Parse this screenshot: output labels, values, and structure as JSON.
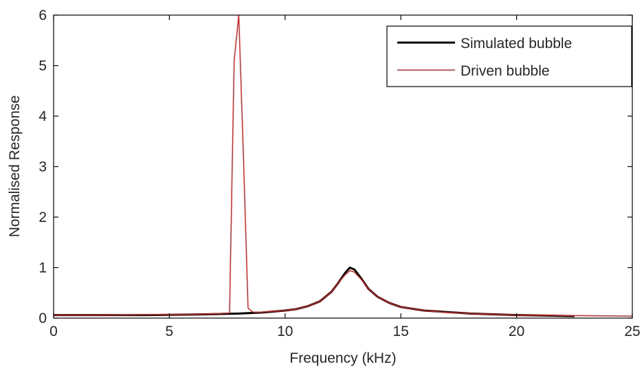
{
  "chart_data": {
    "type": "line",
    "xlabel": "Frequency (kHz)",
    "ylabel": "Normalised Response",
    "xlim": [
      0,
      25
    ],
    "ylim": [
      0,
      6
    ],
    "xticks": [
      0,
      5,
      10,
      15,
      20,
      25
    ],
    "yticks": [
      0,
      1,
      2,
      3,
      4,
      5,
      6
    ],
    "grid": false,
    "legend_position": "top-right",
    "series": [
      {
        "name": "Simulated bubble",
        "color": "#000000",
        "x": [
          0,
          2,
          4,
          6,
          8,
          9,
          10,
          10.5,
          11,
          11.5,
          12,
          12.3,
          12.6,
          12.8,
          13.0,
          13.3,
          13.6,
          14,
          14.5,
          15,
          16,
          17,
          18,
          20,
          22.5
        ],
        "y": [
          0.06,
          0.06,
          0.06,
          0.07,
          0.09,
          0.11,
          0.15,
          0.18,
          0.24,
          0.33,
          0.52,
          0.7,
          0.9,
          1.0,
          0.96,
          0.78,
          0.58,
          0.42,
          0.3,
          0.22,
          0.15,
          0.12,
          0.09,
          0.06,
          0.04
        ]
      },
      {
        "name": "Driven bubble",
        "color": "#e02020",
        "x": [
          0,
          2,
          4,
          6,
          7.6,
          7.8,
          8.0,
          8.2,
          8.4,
          8.6,
          9,
          10,
          10.5,
          11,
          11.5,
          12,
          12.3,
          12.6,
          12.8,
          13.0,
          13.3,
          13.6,
          14,
          14.5,
          15,
          16,
          17,
          18,
          20,
          22,
          25
        ],
        "y": [
          0.06,
          0.06,
          0.07,
          0.07,
          0.1,
          5.1,
          6.0,
          3.2,
          0.2,
          0.12,
          0.12,
          0.15,
          0.18,
          0.24,
          0.33,
          0.52,
          0.7,
          0.86,
          0.94,
          0.91,
          0.76,
          0.58,
          0.42,
          0.3,
          0.22,
          0.15,
          0.11,
          0.09,
          0.06,
          0.05,
          0.04
        ]
      }
    ]
  }
}
